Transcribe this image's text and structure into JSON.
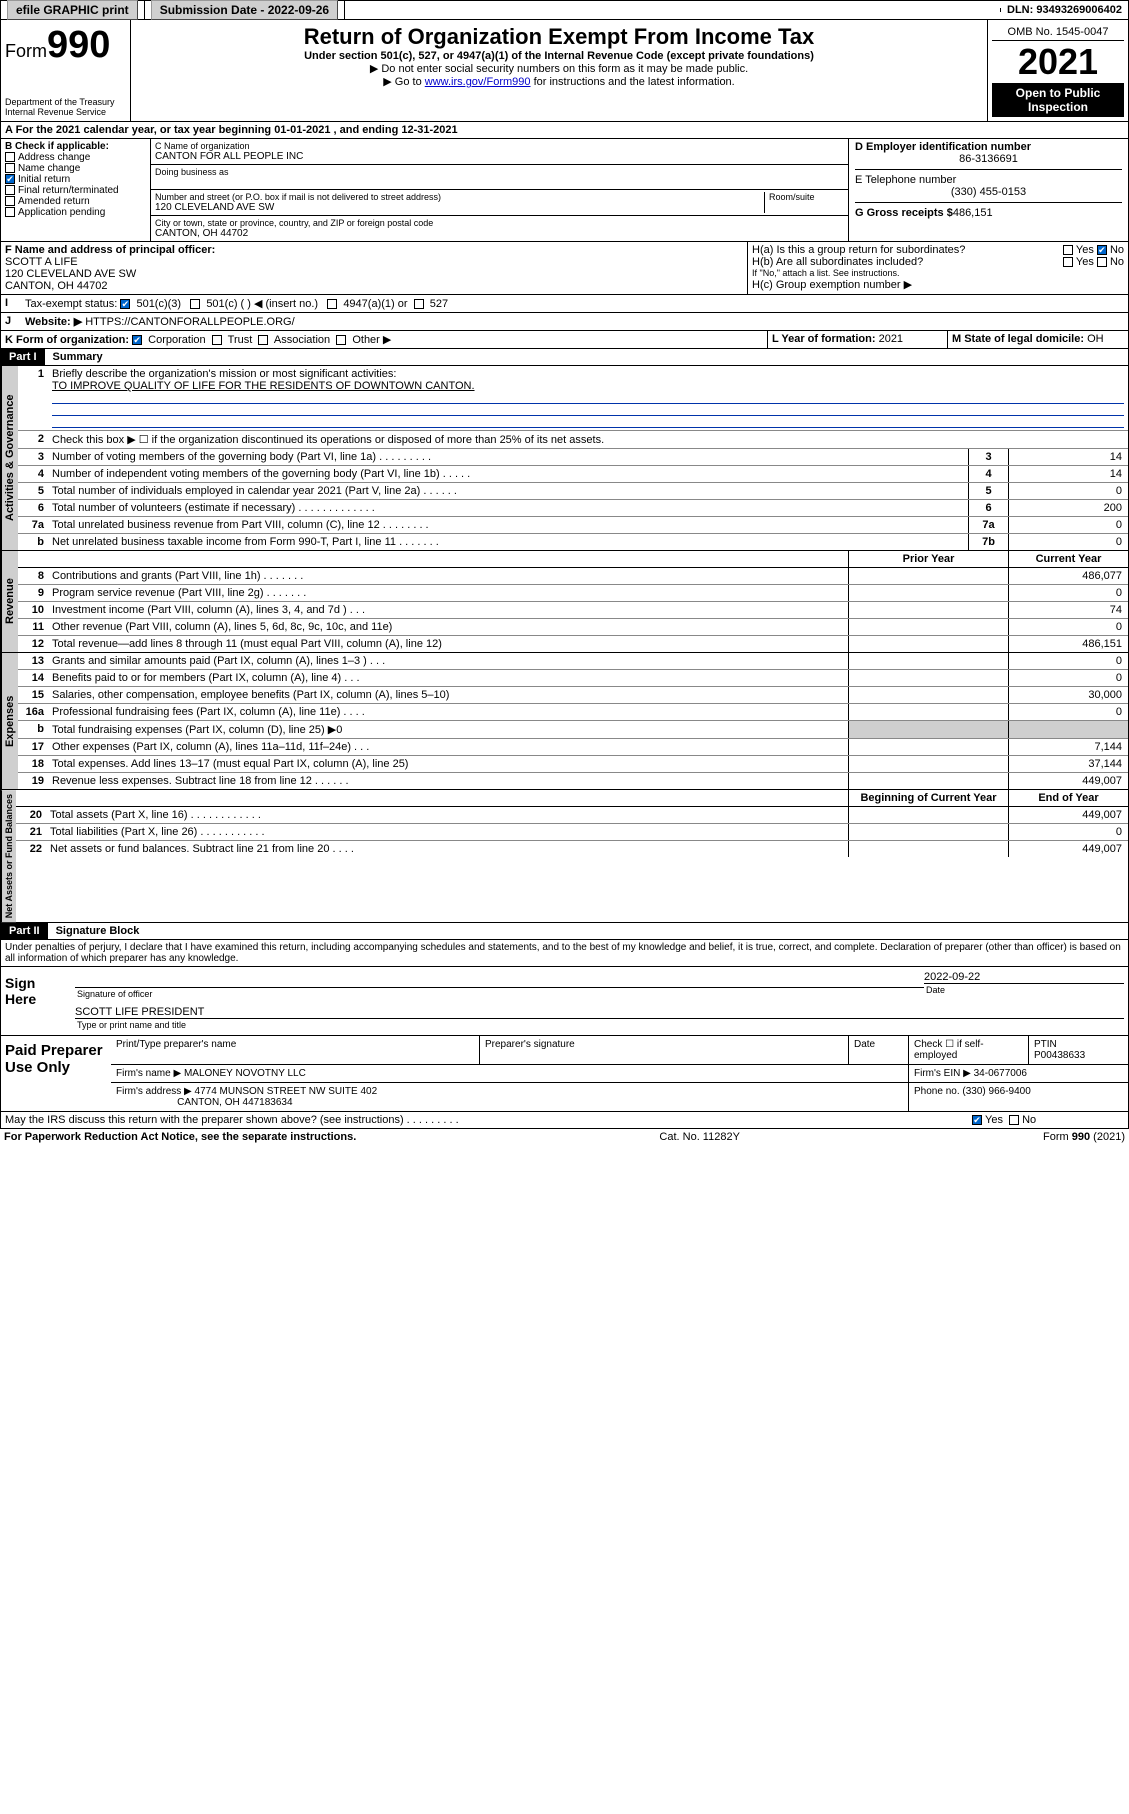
{
  "topbar": {
    "efile": "efile GRAPHIC print",
    "subdate_label": "Submission Date - 2022-09-26",
    "dln": "DLN: 93493269006402"
  },
  "header": {
    "form_label": "Form",
    "form_num": "990",
    "dept": "Department of the Treasury",
    "irs": "Internal Revenue Service",
    "title": "Return of Organization Exempt From Income Tax",
    "sub1": "Under section 501(c), 527, or 4947(a)(1) of the Internal Revenue Code (except private foundations)",
    "sub2": "▶ Do not enter social security numbers on this form as it may be made public.",
    "sub3_pre": "▶ Go to ",
    "sub3_link": "www.irs.gov/Form990",
    "sub3_post": " for instructions and the latest information.",
    "omb": "OMB No. 1545-0047",
    "year": "2021",
    "open": "Open to Public Inspection"
  },
  "secA": "A For the 2021 calendar year, or tax year beginning 01-01-2021   , and ending 12-31-2021",
  "colB": {
    "hdr": "B Check if applicable:",
    "addr": "Address change",
    "name": "Name change",
    "init": "Initial return",
    "final": "Final return/terminated",
    "amend": "Amended return",
    "app": "Application pending"
  },
  "colC": {
    "name_lbl": "C Name of organization",
    "name": "CANTON FOR ALL PEOPLE INC",
    "dba_lbl": "Doing business as",
    "addr_lbl": "Number and street (or P.O. box if mail is not delivered to street address)",
    "room_lbl": "Room/suite",
    "addr": "120 CLEVELAND AVE SW",
    "city_lbl": "City or town, state or province, country, and ZIP or foreign postal code",
    "city": "CANTON, OH  44702"
  },
  "colD": {
    "ein_lbl": "D Employer identification number",
    "ein": "86-3136691",
    "tel_lbl": "E Telephone number",
    "tel": "(330) 455-0153",
    "gross_lbl": "G Gross receipts $",
    "gross": "486,151"
  },
  "rowF": {
    "lbl": "F Name and address of principal officer:",
    "name": "SCOTT A LIFE",
    "addr1": "120 CLEVELAND AVE SW",
    "addr2": "CANTON, OH  44702"
  },
  "rowH": {
    "ha": "H(a)  Is this a group return for subordinates?",
    "hb": "H(b)  Are all subordinates included?",
    "note": "If \"No,\" attach a list. See instructions.",
    "hc": "H(c)  Group exemption number ▶",
    "yes": "Yes",
    "no": "No"
  },
  "rowI": {
    "lbl": "Tax-exempt status:",
    "o1": "501(c)(3)",
    "o2": "501(c) (  ) ◀ (insert no.)",
    "o3": "4947(a)(1) or",
    "o4": "527"
  },
  "rowJ": {
    "lbl": "Website: ▶",
    "val": "HTTPS://CANTONFORALLPEOPLE.ORG/"
  },
  "rowK": {
    "lbl": "K Form of organization:",
    "corp": "Corporation",
    "trust": "Trust",
    "assoc": "Association",
    "other": "Other ▶"
  },
  "rowL": {
    "lbl": "L Year of formation:",
    "val": "2021"
  },
  "rowM": {
    "lbl": "M State of legal domicile:",
    "val": "OH"
  },
  "part1": {
    "hdr": "Part I",
    "title": "Summary",
    "q1": "Briefly describe the organization's mission or most significant activities:",
    "mission": "TO IMPROVE QUALITY OF LIFE FOR THE RESIDENTS OF DOWNTOWN CANTON.",
    "q2": "Check this box ▶ ☐  if the organization discontinued its operations or disposed of more than 25% of its net assets.",
    "lines": [
      {
        "n": "3",
        "t": "Number of voting members of the governing body (Part VI, line 1a)  .    .    .    .    .    .    .    .    .",
        "b": "3",
        "v": "14"
      },
      {
        "n": "4",
        "t": "Number of independent voting members of the governing body (Part VI, line 1b)  .    .    .    .    .",
        "b": "4",
        "v": "14"
      },
      {
        "n": "5",
        "t": "Total number of individuals employed in calendar year 2021 (Part V, line 2a)  .    .    .    .    .    .",
        "b": "5",
        "v": "0"
      },
      {
        "n": "6",
        "t": "Total number of volunteers (estimate if necessary)  .    .    .    .    .    .    .    .    .    .    .    .    .",
        "b": "6",
        "v": "200"
      },
      {
        "n": "7a",
        "t": "Total unrelated business revenue from Part VIII, column (C), line 12  .    .    .    .    .    .    .    .",
        "b": "7a",
        "v": "0"
      },
      {
        "n": "b",
        "t": "Net unrelated business taxable income from Form 990-T, Part I, line 11  .    .    .    .    .    .    .",
        "b": "7b",
        "v": "0"
      }
    ],
    "colhdr_prior": "Prior Year",
    "colhdr_curr": "Current Year",
    "rev": [
      {
        "n": "8",
        "t": "Contributions and grants (Part VIII, line 1h)  .    .    .    .    .    .    .",
        "p": "",
        "c": "486,077"
      },
      {
        "n": "9",
        "t": "Program service revenue (Part VIII, line 2g)  .    .    .    .    .    .    .",
        "p": "",
        "c": "0"
      },
      {
        "n": "10",
        "t": "Investment income (Part VIII, column (A), lines 3, 4, and 7d )  .    .    .",
        "p": "",
        "c": "74"
      },
      {
        "n": "11",
        "t": "Other revenue (Part VIII, column (A), lines 5, 6d, 8c, 9c, 10c, and 11e)",
        "p": "",
        "c": "0"
      },
      {
        "n": "12",
        "t": "Total revenue—add lines 8 through 11 (must equal Part VIII, column (A), line 12)",
        "p": "",
        "c": "486,151"
      }
    ],
    "exp": [
      {
        "n": "13",
        "t": "Grants and similar amounts paid (Part IX, column (A), lines 1–3 )  .    .    .",
        "p": "",
        "c": "0"
      },
      {
        "n": "14",
        "t": "Benefits paid to or for members (Part IX, column (A), line 4)  .    .    .",
        "p": "",
        "c": "0"
      },
      {
        "n": "15",
        "t": "Salaries, other compensation, employee benefits (Part IX, column (A), lines 5–10)",
        "p": "",
        "c": "30,000"
      },
      {
        "n": "16a",
        "t": "Professional fundraising fees (Part IX, column (A), line 11e)  .    .    .    .",
        "p": "",
        "c": "0"
      },
      {
        "n": "b",
        "t": "Total fundraising expenses (Part IX, column (D), line 25) ▶0",
        "p": "shade",
        "c": "shade"
      },
      {
        "n": "17",
        "t": "Other expenses (Part IX, column (A), lines 11a–11d, 11f–24e)  .    .    .",
        "p": "",
        "c": "7,144"
      },
      {
        "n": "18",
        "t": "Total expenses. Add lines 13–17 (must equal Part IX, column (A), line 25)",
        "p": "",
        "c": "37,144"
      },
      {
        "n": "19",
        "t": "Revenue less expenses. Subtract line 18 from line 12  .    .    .    .    .    .",
        "p": "",
        "c": "449,007"
      }
    ],
    "colhdr_beg": "Beginning of Current Year",
    "colhdr_end": "End of Year",
    "net": [
      {
        "n": "20",
        "t": "Total assets (Part X, line 16)  .    .    .    .    .    .    .    .    .    .    .    .",
        "p": "",
        "c": "449,007"
      },
      {
        "n": "21",
        "t": "Total liabilities (Part X, line 26)  .    .    .    .    .    .    .    .    .    .    .",
        "p": "",
        "c": "0"
      },
      {
        "n": "22",
        "t": "Net assets or fund balances. Subtract line 21 from line 20  .    .    .    .",
        "p": "",
        "c": "449,007"
      }
    ],
    "tab_act": "Activities & Governance",
    "tab_rev": "Revenue",
    "tab_exp": "Expenses",
    "tab_net": "Net Assets or Fund Balances"
  },
  "part2": {
    "hdr": "Part II",
    "title": "Signature Block",
    "decl": "Under penalties of perjury, I declare that I have examined this return, including accompanying schedules and statements, and to the best of my knowledge and belief, it is true, correct, and complete. Declaration of preparer (other than officer) is based on all information of which preparer has any knowledge.",
    "sign_here": "Sign Here",
    "sig_off": "Signature of officer",
    "date_lbl": "Date",
    "date": "2022-09-22",
    "name_title": "SCOTT LIFE  PRESIDENT",
    "type_lbl": "Type or print name and title"
  },
  "paid": {
    "hdr": "Paid Preparer Use Only",
    "p1": "Print/Type preparer's name",
    "p2": "Preparer's signature",
    "p3": "Date",
    "p4a": "Check ☐ if self-employed",
    "p4b": "PTIN",
    "ptin": "P00438633",
    "firm_lbl": "Firm's name    ▶",
    "firm": "MALONEY NOVOTNY LLC",
    "ein_lbl": "Firm's EIN ▶",
    "ein": "34-0677006",
    "addr_lbl": "Firm's address ▶",
    "addr1": "4774 MUNSON STREET NW SUITE 402",
    "addr2": "CANTON, OH  447183634",
    "phone_lbl": "Phone no.",
    "phone": "(330) 966-9400"
  },
  "discuss": {
    "q": "May the IRS discuss this return with the preparer shown above? (see instructions)  .    .    .    .    .    .    .    .    .",
    "yes": "Yes",
    "no": "No"
  },
  "footer": {
    "left": "For Paperwork Reduction Act Notice, see the separate instructions.",
    "mid": "Cat. No. 11282Y",
    "right": "Form 990 (2021)"
  }
}
